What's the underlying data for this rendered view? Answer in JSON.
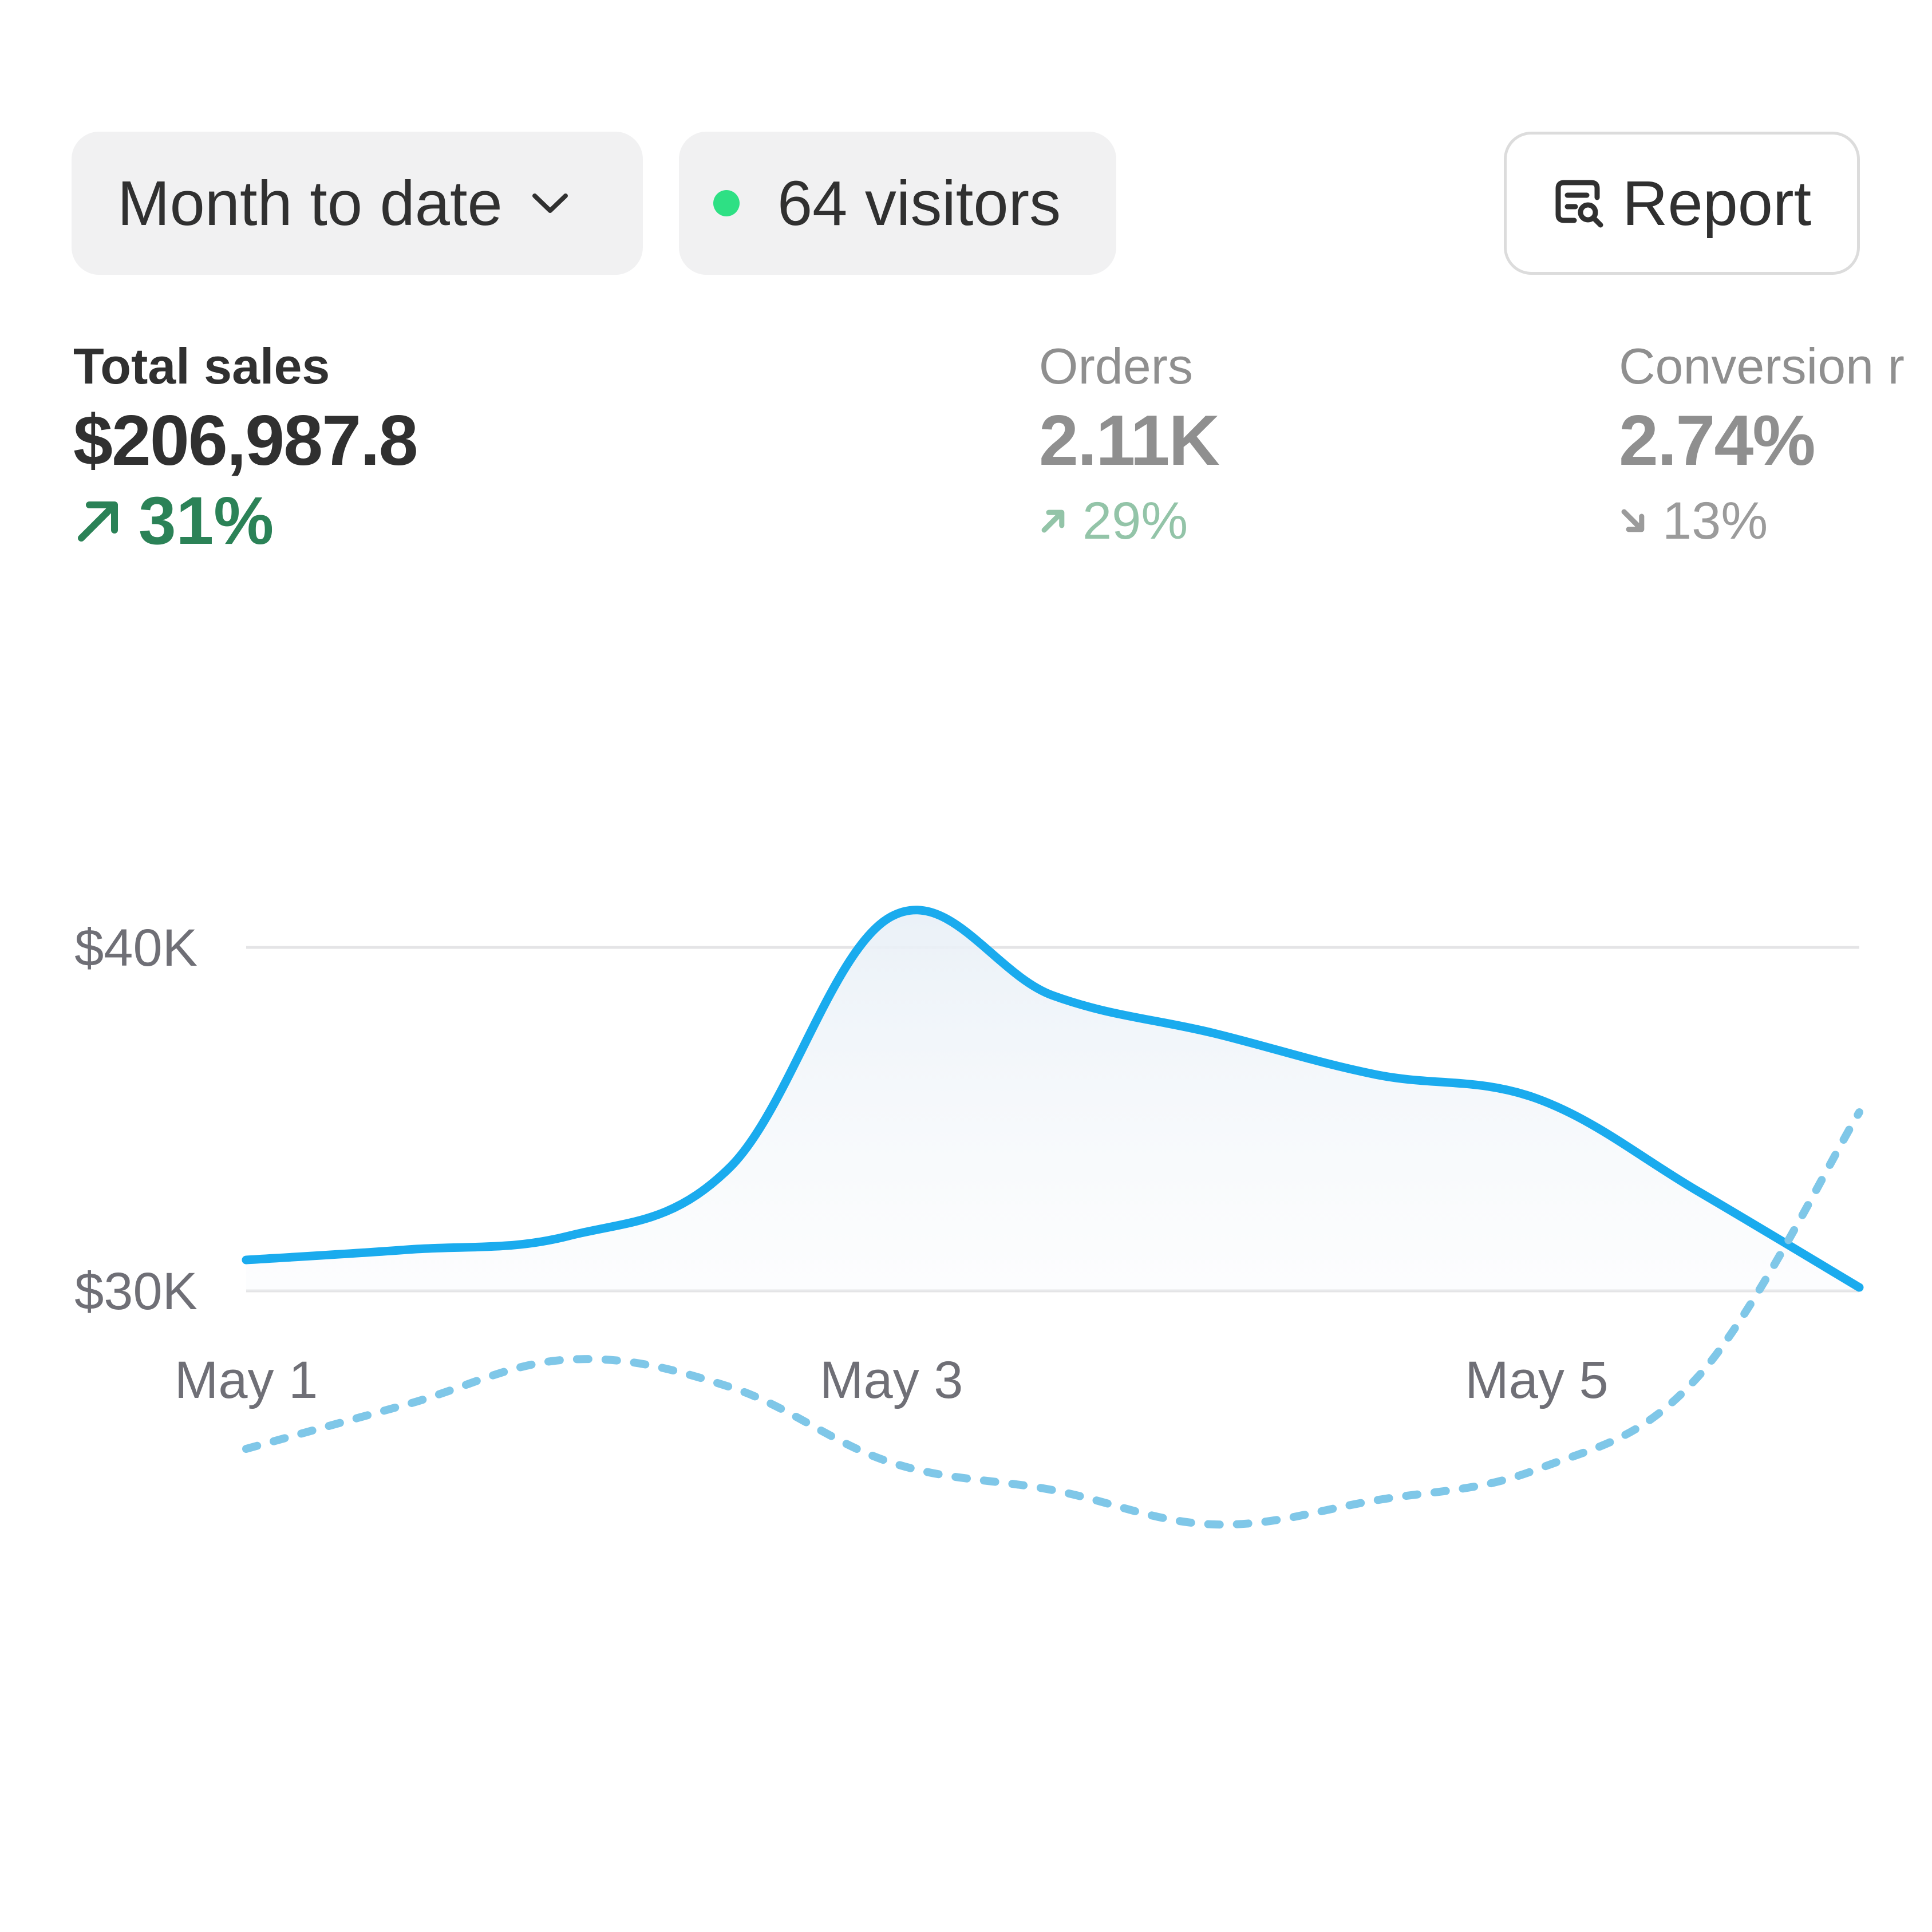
{
  "toolbar": {
    "period_label": "Month to date",
    "visitors_label": "64 visitors",
    "report_label": "Report",
    "live_dot_color": "#2ee084"
  },
  "metrics": [
    {
      "label": "Total sales",
      "value": "$206,987.8",
      "delta": "31%",
      "direction": "up",
      "active": true
    },
    {
      "label": "Orders",
      "value": "2.11K",
      "delta": "29%",
      "direction": "up",
      "active": false
    },
    {
      "label": "Conversion r",
      "value": "2.74%",
      "delta": "13%",
      "direction": "down",
      "active": false
    }
  ],
  "chart_data": {
    "type": "line",
    "x": [
      "May 1",
      "May 1.5",
      "May 2",
      "May 2.5",
      "May 3",
      "May 3.5",
      "May 4",
      "May 4.5",
      "May 5",
      "May 5.5",
      "May 6"
    ],
    "x_ticks": [
      "May 1",
      "May 3",
      "May 5"
    ],
    "y_ticks": [
      "$30K",
      "$40K"
    ],
    "ylim": [
      22000,
      48000
    ],
    "grid": true,
    "series": [
      {
        "style": "solid",
        "color": "#1aabee",
        "fill": true,
        "values": [
          30900,
          31200,
          31600,
          33600,
          40900,
          38600,
          37500,
          36300,
          35600,
          32900,
          30100
        ]
      },
      {
        "style": "dashed",
        "color": "#7fc7e8",
        "fill": false,
        "values": [
          25400,
          26700,
          28000,
          27200,
          25000,
          24200,
          23200,
          23900,
          24800,
          27500,
          35200
        ]
      }
    ]
  }
}
